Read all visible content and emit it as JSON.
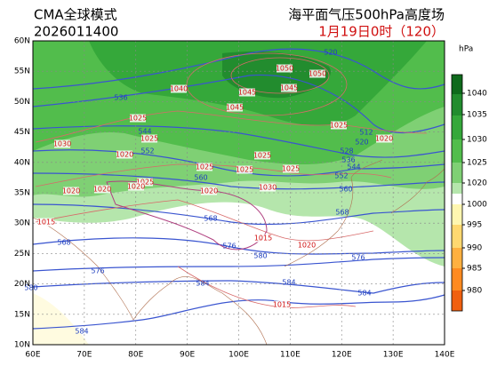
{
  "header": {
    "model": "CMA全球模式",
    "init_time": "2026011400",
    "title": "海平面气压500hPa高度场",
    "valid_time": "1月19日0时（120）"
  },
  "lat_labels": [
    "60N",
    "55N",
    "50N",
    "45N",
    "40N",
    "35N",
    "30N",
    "25N",
    "20N",
    "15N",
    "10N"
  ],
  "lon_labels": [
    "60E",
    "70E",
    "80E",
    "90E",
    "100E",
    "110E",
    "120E",
    "130E",
    "140E"
  ],
  "colorbar": {
    "unit": "hPa",
    "labels": [
      1040,
      1035,
      1030,
      1025,
      1020,
      1000,
      995,
      990,
      985,
      980
    ]
  },
  "height_labels": [
    520,
    536,
    544,
    552,
    560,
    568,
    568,
    576,
    580,
    576,
    576,
    584,
    584,
    584,
    580,
    584,
    512,
    520,
    528,
    536,
    544,
    552,
    560,
    568
  ],
  "pressure_labels": [
    1050,
    1050,
    1040,
    1045,
    1045,
    1045,
    1025,
    1025,
    1030,
    1020,
    1025,
    1020,
    1025,
    1025,
    1025,
    1025,
    1025,
    1020,
    1020,
    1020,
    1020,
    1030,
    1015,
    1015,
    1020,
    1015
  ]
}
